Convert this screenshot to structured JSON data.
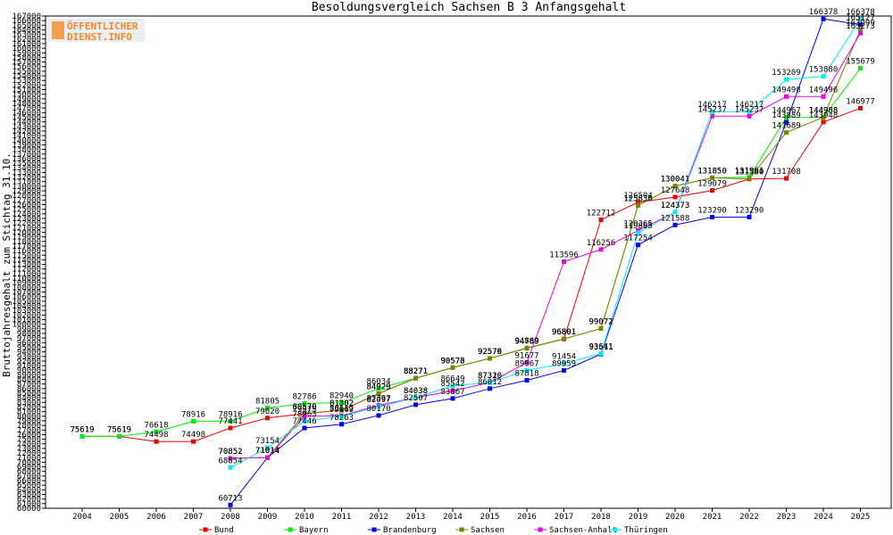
{
  "logo": {
    "line1": "ÖFFENTLICHER",
    "line2": "DIENST.INFO"
  },
  "chart_data": {
    "type": "line",
    "title": "Besoldungsvergleich Sachsen B 3 Anfangsgehalt",
    "xlabel": "",
    "ylabel": "Bruttojahresgehalt zum Stichtag 31.10.",
    "ylim": [
      60000,
      167000
    ],
    "ytick_step": 1000,
    "x": [
      2004,
      2005,
      2006,
      2007,
      2008,
      2009,
      2010,
      2011,
      2012,
      2013,
      2014,
      2015,
      2016,
      2017,
      2018,
      2019,
      2020,
      2021,
      2022,
      2023,
      2024,
      2025
    ],
    "grid": false,
    "legend": "bottom",
    "series": [
      {
        "name": "Bund",
        "color": "#ee0000",
        "values": [
          75619,
          75619,
          74498,
          74498,
          77441,
          79620,
          80570,
          81302,
          84929,
          88271,
          90573,
          92576,
          94789,
          96801,
          122712,
          126504,
          127648,
          129079,
          131580,
          131708,
          143948,
          146977
        ]
      },
      {
        "name": "Bayern",
        "color": "#00ee00",
        "values": [
          75619,
          75619,
          76618,
          78916,
          78916,
          81805,
          82786,
          82940,
          86034,
          88271,
          90576,
          92579,
          94869,
          96801,
          99072,
          125836,
          130041,
          131850,
          131961,
          144967,
          144988,
          155679
        ]
      },
      {
        "name": "Brandenburg",
        "color": "#0000ee",
        "values": [
          null,
          null,
          null,
          null,
          60713,
          71014,
          77446,
          78263,
          80170,
          82507,
          83867,
          86012,
          87818,
          89959,
          93511,
          117254,
          121588,
          123290,
          123290,
          143889,
          166378,
          165127
        ]
      },
      {
        "name": "Sachsen",
        "color": "#808000",
        "values": [
          null,
          null,
          null,
          null,
          70852,
          71014,
          80570,
          81302,
          84929,
          88271,
          90573,
          92576,
          94789,
          96801,
          99072,
          125836,
          130041,
          131850,
          131580,
          141689,
          144988,
          163999
        ]
      },
      {
        "name": "Sachsen-Anhalt",
        "color": "#ee00ee",
        "values": [
          null,
          null,
          null,
          null,
          70852,
          71014,
          79975,
          80112,
          82397,
          84038,
          85542,
          87310,
          91677,
          113596,
          116256,
          120365,
          124373,
          145237,
          145237,
          149498,
          149496,
          163273
        ]
      },
      {
        "name": "Thüringen",
        "color": "#00eeee",
        "values": [
          null,
          null,
          null,
          null,
          68854,
          73154,
          78963,
          79969,
          82097,
          84038,
          86649,
          87320,
          89967,
          91454,
          93641,
          119865,
          124373,
          146217,
          146217,
          153209,
          153880,
          166378
        ]
      }
    ]
  }
}
